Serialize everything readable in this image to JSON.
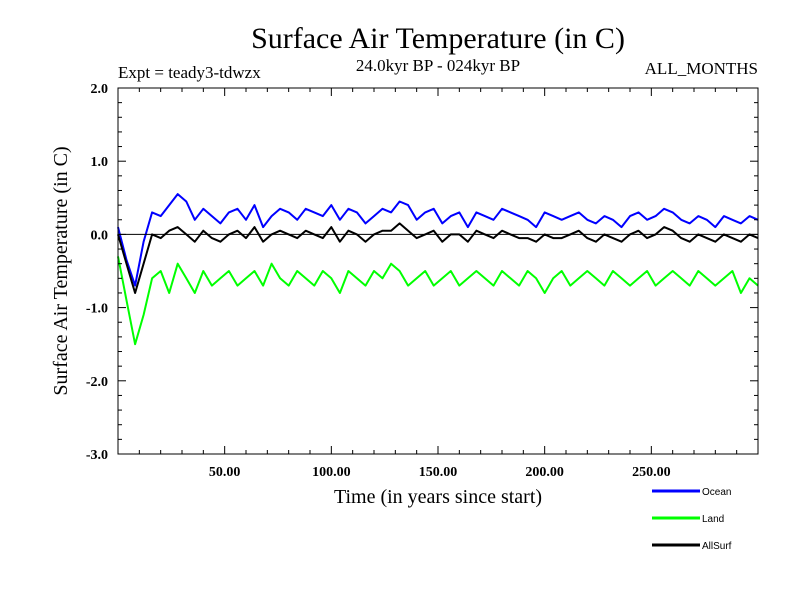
{
  "chart_data": {
    "type": "line",
    "title": "Surface Air Temperature (in C)",
    "subtitle_left": "Expt = teady3-tdwzx",
    "subtitle_center": "24.0kyr BP - 024kyr BP",
    "subtitle_right": "ALL_MONTHS",
    "xlabel": "Time (in years since start)",
    "ylabel": "Surface Air Temperature (in C)",
    "xlim": [
      0,
      300
    ],
    "ylim": [
      -3.0,
      2.0
    ],
    "x_ticks": [
      50,
      100,
      150,
      200,
      250
    ],
    "x_tick_labels": [
      "50.00",
      "100.00",
      "150.00",
      "200.00",
      "250.00"
    ],
    "y_ticks": [
      2.0,
      1.0,
      0.0,
      -1.0,
      -2.0,
      -3.0
    ],
    "y_tick_labels": [
      "2.0",
      "1.0",
      "0.0",
      "-1.0",
      "-2.0",
      "-3.0"
    ],
    "reference_line_y": 0.0,
    "x": [
      0,
      4,
      8,
      12,
      16,
      20,
      24,
      28,
      32,
      36,
      40,
      44,
      48,
      52,
      56,
      60,
      64,
      68,
      72,
      76,
      80,
      84,
      88,
      92,
      96,
      100,
      104,
      108,
      112,
      116,
      120,
      124,
      128,
      132,
      136,
      140,
      144,
      148,
      152,
      156,
      160,
      164,
      168,
      172,
      176,
      180,
      184,
      188,
      192,
      196,
      200,
      204,
      208,
      212,
      216,
      220,
      224,
      228,
      232,
      236,
      240,
      244,
      248,
      252,
      256,
      260,
      264,
      268,
      272,
      276,
      280,
      284,
      288,
      292,
      296,
      300
    ],
    "series": [
      {
        "name": "Ocean",
        "color": "#0000ff",
        "values": [
          0.1,
          -0.35,
          -0.7,
          -0.1,
          0.3,
          0.25,
          0.4,
          0.55,
          0.45,
          0.2,
          0.35,
          0.25,
          0.15,
          0.3,
          0.35,
          0.2,
          0.4,
          0.1,
          0.25,
          0.35,
          0.3,
          0.2,
          0.35,
          0.3,
          0.25,
          0.4,
          0.2,
          0.35,
          0.3,
          0.15,
          0.25,
          0.35,
          0.3,
          0.45,
          0.4,
          0.2,
          0.3,
          0.35,
          0.15,
          0.25,
          0.3,
          0.1,
          0.3,
          0.25,
          0.2,
          0.35,
          0.3,
          0.25,
          0.2,
          0.1,
          0.3,
          0.25,
          0.2,
          0.25,
          0.3,
          0.2,
          0.15,
          0.25,
          0.2,
          0.1,
          0.25,
          0.3,
          0.2,
          0.25,
          0.35,
          0.3,
          0.2,
          0.15,
          0.25,
          0.2,
          0.1,
          0.25,
          0.2,
          0.15,
          0.25,
          0.2
        ]
      },
      {
        "name": "Land",
        "color": "#00ff00",
        "values": [
          -0.3,
          -0.9,
          -1.5,
          -1.1,
          -0.6,
          -0.5,
          -0.8,
          -0.4,
          -0.6,
          -0.8,
          -0.5,
          -0.7,
          -0.6,
          -0.5,
          -0.7,
          -0.6,
          -0.5,
          -0.7,
          -0.4,
          -0.6,
          -0.7,
          -0.5,
          -0.6,
          -0.7,
          -0.5,
          -0.6,
          -0.8,
          -0.5,
          -0.6,
          -0.7,
          -0.5,
          -0.6,
          -0.4,
          -0.5,
          -0.7,
          -0.6,
          -0.5,
          -0.7,
          -0.6,
          -0.5,
          -0.7,
          -0.6,
          -0.5,
          -0.6,
          -0.7,
          -0.5,
          -0.6,
          -0.7,
          -0.5,
          -0.6,
          -0.8,
          -0.6,
          -0.5,
          -0.7,
          -0.6,
          -0.5,
          -0.6,
          -0.7,
          -0.5,
          -0.6,
          -0.7,
          -0.6,
          -0.5,
          -0.7,
          -0.6,
          -0.5,
          -0.6,
          -0.7,
          -0.5,
          -0.6,
          -0.7,
          -0.6,
          -0.5,
          -0.8,
          -0.6,
          -0.7
        ]
      },
      {
        "name": "AllSurf",
        "color": "#000000",
        "values": [
          0.0,
          -0.4,
          -0.8,
          -0.4,
          0.0,
          -0.05,
          0.05,
          0.1,
          0.0,
          -0.1,
          0.05,
          -0.05,
          -0.1,
          0.0,
          0.05,
          -0.05,
          0.1,
          -0.1,
          0.0,
          0.05,
          0.0,
          -0.05,
          0.05,
          0.0,
          -0.05,
          0.1,
          -0.1,
          0.05,
          0.0,
          -0.1,
          0.0,
          0.05,
          0.05,
          0.15,
          0.05,
          -0.05,
          0.0,
          0.05,
          -0.1,
          0.0,
          0.0,
          -0.1,
          0.05,
          0.0,
          -0.05,
          0.05,
          0.0,
          -0.05,
          -0.05,
          -0.1,
          0.0,
          -0.05,
          -0.05,
          0.0,
          0.05,
          -0.05,
          -0.1,
          0.0,
          -0.05,
          -0.1,
          0.0,
          0.05,
          -0.05,
          0.0,
          0.1,
          0.05,
          -0.05,
          -0.1,
          0.0,
          -0.05,
          -0.1,
          0.0,
          -0.05,
          -0.1,
          0.0,
          -0.05
        ]
      }
    ],
    "legend": [
      {
        "label": "Ocean",
        "color": "#0000ff"
      },
      {
        "label": "Land",
        "color": "#00ff00"
      },
      {
        "label": "AllSurf",
        "color": "#000000"
      }
    ],
    "legend_position": "bottom-right"
  }
}
